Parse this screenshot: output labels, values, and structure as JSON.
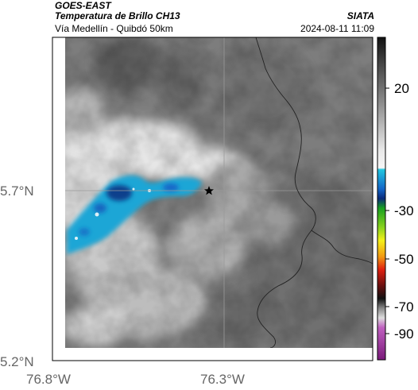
{
  "header": {
    "satellite": "GOES-EAST",
    "product": "Temperatura de Brillo CH13",
    "region": "Vía Medellín - Quibdó 50km",
    "source": "SIATA",
    "timestamp": "2024-08-11 11:09"
  },
  "map": {
    "lat_ticks": [
      {
        "value": 5.7,
        "label": "5.7°N"
      },
      {
        "value": 5.2,
        "label": "5.2°N"
      }
    ],
    "lon_ticks": [
      {
        "value": -76.8,
        "label": "76.8°W"
      },
      {
        "value": -76.3,
        "label": "76.3°W"
      }
    ],
    "marker_icon": "star-icon",
    "colors": {
      "cold_cloud": "#1aa6d6",
      "coldest_cloud": "#0a3f8c",
      "warm_surface": "#7a7a7a",
      "border_line": "#222222",
      "grid_line": "#9a9a9a"
    }
  },
  "colorbar": {
    "ticks": [
      "20",
      "-30",
      "-50",
      "-70",
      "-90"
    ]
  }
}
